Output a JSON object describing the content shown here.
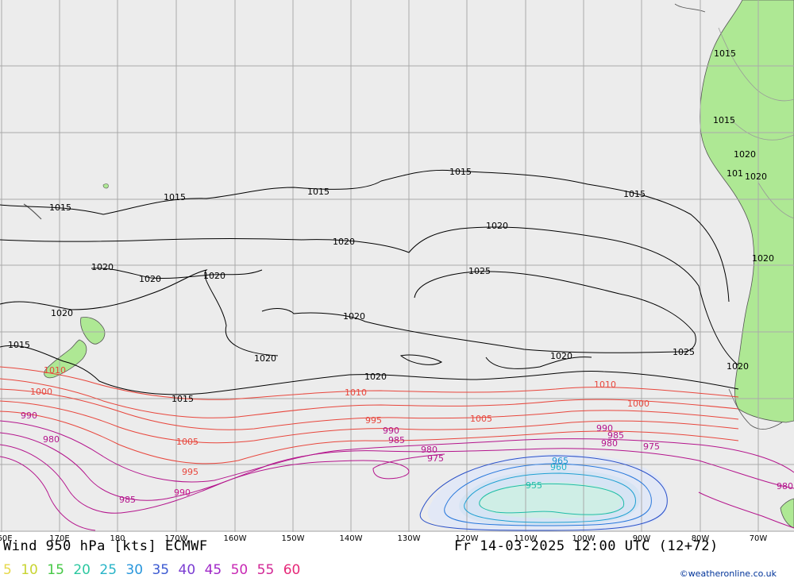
{
  "map": {
    "title": "Wind 950 hPa [kts] ECMWF",
    "valid": "Fr 14-03-2025 12:00 UTC (12+72)",
    "credit": "©weatheronline.co.uk",
    "longitude_labels": [
      "60E",
      "170E",
      "180",
      "170W",
      "160W",
      "150W",
      "140W",
      "130W",
      "120W",
      "110W",
      "100W",
      "90W",
      "80W",
      "70W"
    ],
    "legend": [
      {
        "label": "5",
        "color": "#e6d84a"
      },
      {
        "label": "10",
        "color": "#c8d430"
      },
      {
        "label": "15",
        "color": "#46c846"
      },
      {
        "label": "20",
        "color": "#2cc8a0"
      },
      {
        "label": "25",
        "color": "#28b4c8"
      },
      {
        "label": "30",
        "color": "#2896dc"
      },
      {
        "label": "35",
        "color": "#3c5ad2"
      },
      {
        "label": "40",
        "color": "#7a3cd2"
      },
      {
        "label": "45",
        "color": "#a028c8"
      },
      {
        "label": "50",
        "color": "#c828b4"
      },
      {
        "label": "55",
        "color": "#d22896"
      },
      {
        "label": "60",
        "color": "#e62878"
      }
    ],
    "isobar_labels": {
      "black": [
        "1015",
        "1015",
        "1015",
        "1015",
        "1015",
        "1015",
        "1015",
        "1015",
        "1015",
        "1020",
        "1020",
        "1020",
        "1020",
        "1020",
        "1020",
        "1020",
        "1020",
        "1020",
        "1020",
        "1020",
        "1020",
        "1020",
        "1020",
        "1025",
        "1025",
        "101"
      ],
      "red": [
        "1010",
        "1000",
        "1010",
        "1010",
        "1000",
        "1005",
        "995",
        "1005",
        "995",
        "990"
      ],
      "purple": [
        "990",
        "980",
        "985",
        "990",
        "985",
        "980",
        "975",
        "990",
        "985",
        "980",
        "975",
        "980"
      ],
      "cyan": [
        "965",
        "960",
        "955"
      ]
    },
    "colors": {
      "ocean": "#ececec",
      "land": "#aee894",
      "grid": "#aaaaaa",
      "isobar_high": "#000000",
      "isobar_low_red": "#e8463c",
      "isobar_low_purple": "#b4148c",
      "isobar_deep": "#1e78c8"
    }
  }
}
